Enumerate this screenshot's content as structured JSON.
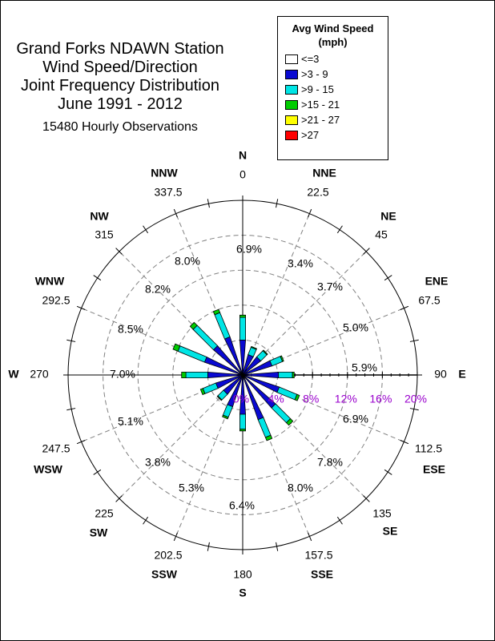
{
  "chart_data": {
    "type": "wind-rose",
    "title_lines": [
      "Grand Forks NDAWN Station",
      "Wind Speed/Direction",
      "Joint Frequency Distribution",
      "June 1991 - 2012"
    ],
    "subtitle": "15480 Hourly Observations",
    "legend": {
      "title_lines": [
        "Avg Wind Speed",
        "(mph)"
      ],
      "items": [
        {
          "label": "<=3",
          "color": "#ffffff"
        },
        {
          "label": ">3 - 9",
          "color": "#0a0ad2"
        },
        {
          "label": ">9 - 15",
          "color": "#00e5e5"
        },
        {
          "label": ">15 - 21",
          "color": "#00cc00"
        },
        {
          "label": ">21 - 27",
          "color": "#ffff00"
        },
        {
          "label": ">27",
          "color": "#ff0000"
        }
      ]
    },
    "rings_percent": [
      "0%",
      "4%",
      "8%",
      "12%",
      "16%",
      "20%"
    ],
    "ring_label_color": "#9900cc",
    "direction_degree_labels": [
      "0",
      "22.5",
      "45",
      "67.5",
      "90",
      "112.5",
      "135",
      "157.5",
      "180",
      "202.5",
      "225",
      "247.5",
      "270",
      "292.5",
      "315",
      "337.5"
    ],
    "direction_names": [
      "N",
      "NNE",
      "NE",
      "ENE",
      "E",
      "ESE",
      "SE",
      "SSE",
      "S",
      "SSW",
      "SW",
      "WSW",
      "W",
      "WNW",
      "NW",
      "NNW"
    ],
    "direction_percent_labels": [
      "6.9%",
      "3.4%",
      "3.7%",
      "5.0%",
      "5.9%",
      "6.9%",
      "7.8%",
      "8.0%",
      "6.4%",
      "5.3%",
      "3.8%",
      "5.1%",
      "7.0%",
      "8.5%",
      "8.2%",
      "8.0%"
    ],
    "frequency_by_speed_percent": [
      {
        "direction": 0,
        "le3": 0,
        "gt3_9": 4.0,
        "gt9_15": 2.6,
        "gt15_21": 0.25,
        "gt21_27": 0,
        "gt27": 0
      },
      {
        "direction": 22.5,
        "le3": 0,
        "gt3_9": 2.4,
        "gt9_15": 0.9,
        "gt15_21": 0.1,
        "gt21_27": 0,
        "gt27": 0
      },
      {
        "direction": 45,
        "le3": 0,
        "gt3_9": 2.6,
        "gt9_15": 1.0,
        "gt15_21": 0.1,
        "gt21_27": 0,
        "gt27": 0
      },
      {
        "direction": 67.5,
        "le3": 0,
        "gt3_9": 3.5,
        "gt9_15": 1.3,
        "gt15_21": 0.15,
        "gt21_27": 0,
        "gt27": 0
      },
      {
        "direction": 90,
        "le3": 0,
        "gt3_9": 4.1,
        "gt9_15": 1.6,
        "gt15_21": 0.2,
        "gt21_27": 0,
        "gt27": 0
      },
      {
        "direction": 112.5,
        "le3": 0,
        "gt3_9": 4.4,
        "gt9_15": 2.2,
        "gt15_21": 0.3,
        "gt21_27": 0,
        "gt27": 0
      },
      {
        "direction": 135,
        "le3": 0,
        "gt3_9": 5.0,
        "gt9_15": 2.4,
        "gt15_21": 0.4,
        "gt21_27": 0,
        "gt27": 0
      },
      {
        "direction": 157.5,
        "le3": 0,
        "gt3_9": 5.4,
        "gt9_15": 2.2,
        "gt15_21": 0.4,
        "gt21_27": 0,
        "gt27": 0
      },
      {
        "direction": 180,
        "le3": 0,
        "gt3_9": 4.5,
        "gt9_15": 1.7,
        "gt15_21": 0.2,
        "gt21_27": 0,
        "gt27": 0
      },
      {
        "direction": 202.5,
        "le3": 0,
        "gt3_9": 3.8,
        "gt9_15": 1.3,
        "gt15_21": 0.2,
        "gt21_27": 0,
        "gt27": 0
      },
      {
        "direction": 225,
        "le3": 0,
        "gt3_9": 2.8,
        "gt9_15": 0.9,
        "gt15_21": 0.1,
        "gt21_27": 0,
        "gt27": 0
      },
      {
        "direction": 247.5,
        "le3": 0,
        "gt3_9": 3.2,
        "gt9_15": 1.6,
        "gt15_21": 0.3,
        "gt21_27": 0,
        "gt27": 0
      },
      {
        "direction": 270,
        "le3": 0,
        "gt3_9": 4.0,
        "gt9_15": 2.5,
        "gt15_21": 0.5,
        "gt21_27": 0,
        "gt27": 0
      },
      {
        "direction": 292.5,
        "le3": 0,
        "gt3_9": 4.6,
        "gt9_15": 3.3,
        "gt15_21": 0.6,
        "gt21_27": 0,
        "gt27": 0
      },
      {
        "direction": 315,
        "le3": 0,
        "gt3_9": 4.4,
        "gt9_15": 3.3,
        "gt15_21": 0.5,
        "gt21_27": 0,
        "gt27": 0
      },
      {
        "direction": 337.5,
        "le3": 0,
        "gt3_9": 4.6,
        "gt9_15": 3.0,
        "gt15_21": 0.4,
        "gt21_27": 0,
        "gt27": 0
      }
    ],
    "rmax_percent": 20
  }
}
